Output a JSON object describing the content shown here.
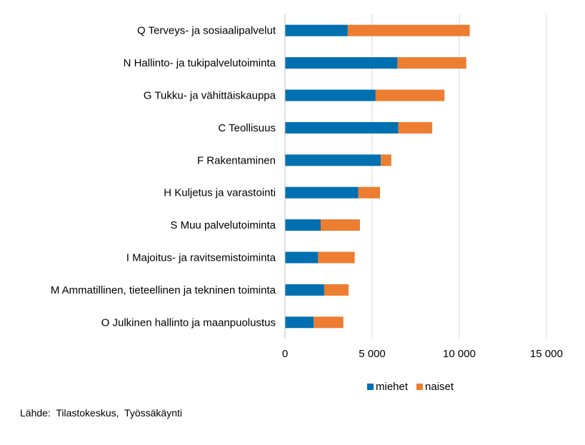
{
  "chart_data": {
    "type": "bar",
    "orientation": "horizontal",
    "stacked": true,
    "categories": [
      "Q Terveys- ja sosiaalipalvelut",
      "N Hallinto- ja tukipalvelutoiminta",
      "G Tukku- ja vähittäiskauppa",
      "C Teollisuus",
      "F Rakentaminen",
      "H Kuljetus ja varastointi",
      "S Muu palvelutoiminta",
      "I Majoitus- ja ravitsemistoiminta",
      "M Ammatillinen, tieteellinen ja tekninen toiminta",
      "O Julkinen hallinto ja maanpuolustus"
    ],
    "series": [
      {
        "name": "miehet",
        "color": "#0070b0",
        "values": [
          3600,
          6450,
          5200,
          6500,
          5500,
          4200,
          2050,
          1900,
          2250,
          1650
        ]
      },
      {
        "name": "naiset",
        "color": "#ed7d31",
        "values": [
          7000,
          3950,
          3950,
          1950,
          600,
          1250,
          2250,
          2100,
          1400,
          1700
        ]
      }
    ],
    "xlim": [
      0,
      15000
    ],
    "xticks": [
      0,
      5000,
      10000,
      15000
    ],
    "xtick_labels": [
      "0",
      "5 000",
      "10 000",
      "15 000"
    ],
    "grid": "vertical",
    "legend": "bottom"
  },
  "source": "Lähde:  Tilastokeskus,  Työssäkäynti"
}
